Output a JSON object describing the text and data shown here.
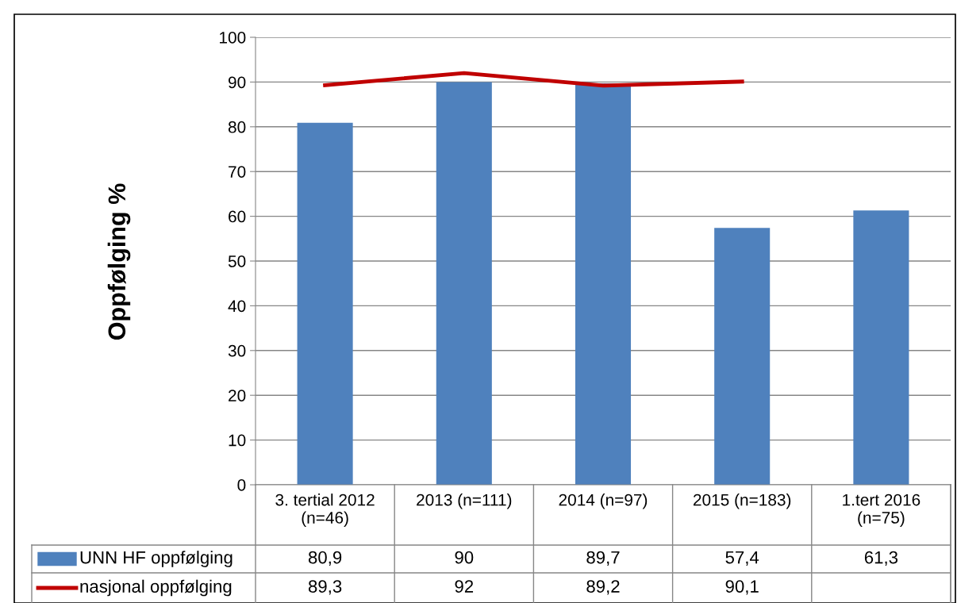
{
  "chart_data": {
    "type": "bar",
    "ylabel": "Oppfølging %",
    "categories": [
      "3. tertial 2012\n(n=46)",
      "2013 (n=111)",
      "2014 (n=97)",
      "2015 (n=183)",
      "1.tert 2016\n(n=75)"
    ],
    "series": [
      {
        "name": "UNN HF oppfølging",
        "color": "#4f81bd",
        "values": [
          80.9,
          90,
          89.7,
          57.4,
          61.3
        ],
        "value_labels": [
          "80,9",
          "90",
          "89,7",
          "57,4",
          "61,3"
        ]
      },
      {
        "name": "nasjonal oppfølging",
        "type": "line",
        "color": "#c00000",
        "values": [
          89.3,
          92,
          89.2,
          90.1,
          null
        ],
        "value_labels": [
          "89,3",
          "92",
          "89,2",
          "90,1",
          null
        ]
      }
    ],
    "ylim": [
      0,
      100
    ],
    "yticks": [
      0,
      10,
      20,
      30,
      40,
      50,
      60,
      70,
      80,
      90,
      100
    ],
    "grid": "y",
    "legend": "bottom"
  }
}
